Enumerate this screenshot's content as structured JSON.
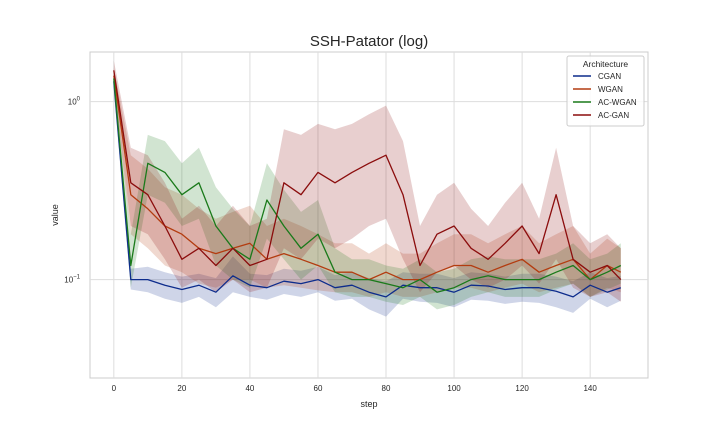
{
  "chart_data": {
    "type": "line",
    "title": "SSH-Patator (log)",
    "xlabel": "step",
    "ylabel": "value",
    "xlim": [
      -7,
      157
    ],
    "ylim": [
      0.028,
      1.9
    ],
    "yscale": "log",
    "x_ticks": [
      0,
      20,
      40,
      60,
      80,
      100,
      120,
      140
    ],
    "x_tick_labels": [
      "0",
      "20",
      "40",
      "60",
      "80",
      "100",
      "120",
      "140"
    ],
    "y_ticks": [
      0.1,
      1
    ],
    "y_tick_labels": [
      {
        "base": "10",
        "exp": "−1"
      },
      {
        "base": "10",
        "exp": "0"
      }
    ],
    "grid": true,
    "legend": {
      "title": "Architecture",
      "placement": "top-right"
    },
    "x": [
      0,
      5,
      10,
      15,
      20,
      25,
      30,
      35,
      40,
      45,
      50,
      55,
      60,
      65,
      70,
      75,
      80,
      85,
      90,
      95,
      100,
      105,
      110,
      115,
      120,
      125,
      130,
      135,
      140,
      145,
      149
    ],
    "series": [
      {
        "name": "CGAN",
        "color": "#0d2c8c",
        "values": [
          1.3,
          0.1,
          0.1,
          0.093,
          0.088,
          0.093,
          0.085,
          0.105,
          0.093,
          0.09,
          0.098,
          0.095,
          0.1,
          0.09,
          0.093,
          0.085,
          0.08,
          0.093,
          0.09,
          0.09,
          0.085,
          0.093,
          0.092,
          0.088,
          0.09,
          0.09,
          0.086,
          0.08,
          0.093,
          0.085,
          0.09
        ],
        "lower": [
          1.15,
          0.088,
          0.085,
          0.078,
          0.074,
          0.08,
          0.07,
          0.085,
          0.08,
          0.077,
          0.083,
          0.08,
          0.085,
          0.076,
          0.078,
          0.068,
          0.062,
          0.078,
          0.075,
          0.074,
          0.07,
          0.077,
          0.076,
          0.073,
          0.075,
          0.074,
          0.07,
          0.065,
          0.078,
          0.07,
          0.076
        ],
        "upper": [
          1.45,
          0.115,
          0.118,
          0.11,
          0.104,
          0.108,
          0.102,
          0.135,
          0.108,
          0.106,
          0.115,
          0.112,
          0.118,
          0.106,
          0.11,
          0.102,
          0.098,
          0.11,
          0.108,
          0.108,
          0.102,
          0.11,
          0.108,
          0.104,
          0.108,
          0.108,
          0.104,
          0.098,
          0.11,
          0.102,
          0.105
        ]
      },
      {
        "name": "WGAN",
        "color": "#b33c10",
        "values": [
          1.4,
          0.3,
          0.25,
          0.2,
          0.18,
          0.15,
          0.14,
          0.15,
          0.16,
          0.13,
          0.14,
          0.13,
          0.12,
          0.11,
          0.11,
          0.1,
          0.11,
          0.1,
          0.1,
          0.11,
          0.12,
          0.12,
          0.11,
          0.12,
          0.13,
          0.11,
          0.12,
          0.13,
          0.1,
          0.12,
          0.11
        ],
        "lower": [
          1.25,
          0.18,
          0.15,
          0.12,
          0.11,
          0.095,
          0.09,
          0.1,
          0.1,
          0.09,
          0.093,
          0.09,
          0.087,
          0.085,
          0.085,
          0.08,
          0.085,
          0.08,
          0.08,
          0.085,
          0.09,
          0.09,
          0.085,
          0.09,
          0.095,
          0.085,
          0.09,
          0.095,
          0.08,
          0.09,
          0.085
        ],
        "upper": [
          1.55,
          0.5,
          0.42,
          0.33,
          0.3,
          0.25,
          0.22,
          0.24,
          0.26,
          0.2,
          0.22,
          0.2,
          0.18,
          0.16,
          0.16,
          0.14,
          0.16,
          0.14,
          0.14,
          0.16,
          0.18,
          0.18,
          0.16,
          0.18,
          0.2,
          0.16,
          0.18,
          0.2,
          0.14,
          0.17,
          0.15
        ]
      },
      {
        "name": "AC-WGAN",
        "color": "#1a7a1a",
        "values": [
          1.35,
          0.12,
          0.45,
          0.4,
          0.3,
          0.35,
          0.2,
          0.15,
          0.13,
          0.28,
          0.2,
          0.15,
          0.18,
          0.11,
          0.1,
          0.1,
          0.095,
          0.09,
          0.1,
          0.085,
          0.09,
          0.1,
          0.105,
          0.1,
          0.1,
          0.1,
          0.11,
          0.12,
          0.1,
          0.11,
          0.12
        ],
        "lower": [
          1.2,
          0.09,
          0.3,
          0.27,
          0.2,
          0.22,
          0.12,
          0.1,
          0.09,
          0.17,
          0.13,
          0.1,
          0.12,
          0.085,
          0.08,
          0.08,
          0.075,
          0.072,
          0.08,
          0.068,
          0.072,
          0.08,
          0.085,
          0.08,
          0.08,
          0.08,
          0.088,
          0.095,
          0.08,
          0.088,
          0.095
        ],
        "upper": [
          1.5,
          0.18,
          0.65,
          0.6,
          0.45,
          0.55,
          0.33,
          0.25,
          0.2,
          0.45,
          0.32,
          0.24,
          0.28,
          0.15,
          0.13,
          0.13,
          0.12,
          0.115,
          0.13,
          0.11,
          0.115,
          0.13,
          0.135,
          0.13,
          0.13,
          0.13,
          0.14,
          0.16,
          0.13,
          0.14,
          0.16
        ]
      },
      {
        "name": "AC-GAN",
        "color": "#8b0d0d",
        "values": [
          1.5,
          0.35,
          0.3,
          0.2,
          0.13,
          0.15,
          0.12,
          0.15,
          0.12,
          0.13,
          0.35,
          0.3,
          0.4,
          0.35,
          0.4,
          0.45,
          0.5,
          0.3,
          0.12,
          0.18,
          0.2,
          0.15,
          0.13,
          0.16,
          0.2,
          0.14,
          0.3,
          0.13,
          0.11,
          0.12,
          0.1
        ],
        "lower": [
          1.3,
          0.2,
          0.18,
          0.13,
          0.09,
          0.1,
          0.085,
          0.1,
          0.085,
          0.09,
          0.15,
          0.13,
          0.17,
          0.15,
          0.17,
          0.2,
          0.22,
          0.13,
          0.085,
          0.11,
          0.12,
          0.1,
          0.09,
          0.1,
          0.12,
          0.095,
          0.13,
          0.09,
          0.08,
          0.085,
          0.075
        ],
        "upper": [
          1.7,
          0.55,
          0.5,
          0.35,
          0.22,
          0.26,
          0.2,
          0.26,
          0.2,
          0.22,
          0.7,
          0.65,
          0.75,
          0.7,
          0.75,
          0.85,
          0.95,
          0.6,
          0.2,
          0.3,
          0.35,
          0.25,
          0.2,
          0.27,
          0.35,
          0.22,
          0.55,
          0.2,
          0.16,
          0.18,
          0.15
        ]
      }
    ]
  }
}
